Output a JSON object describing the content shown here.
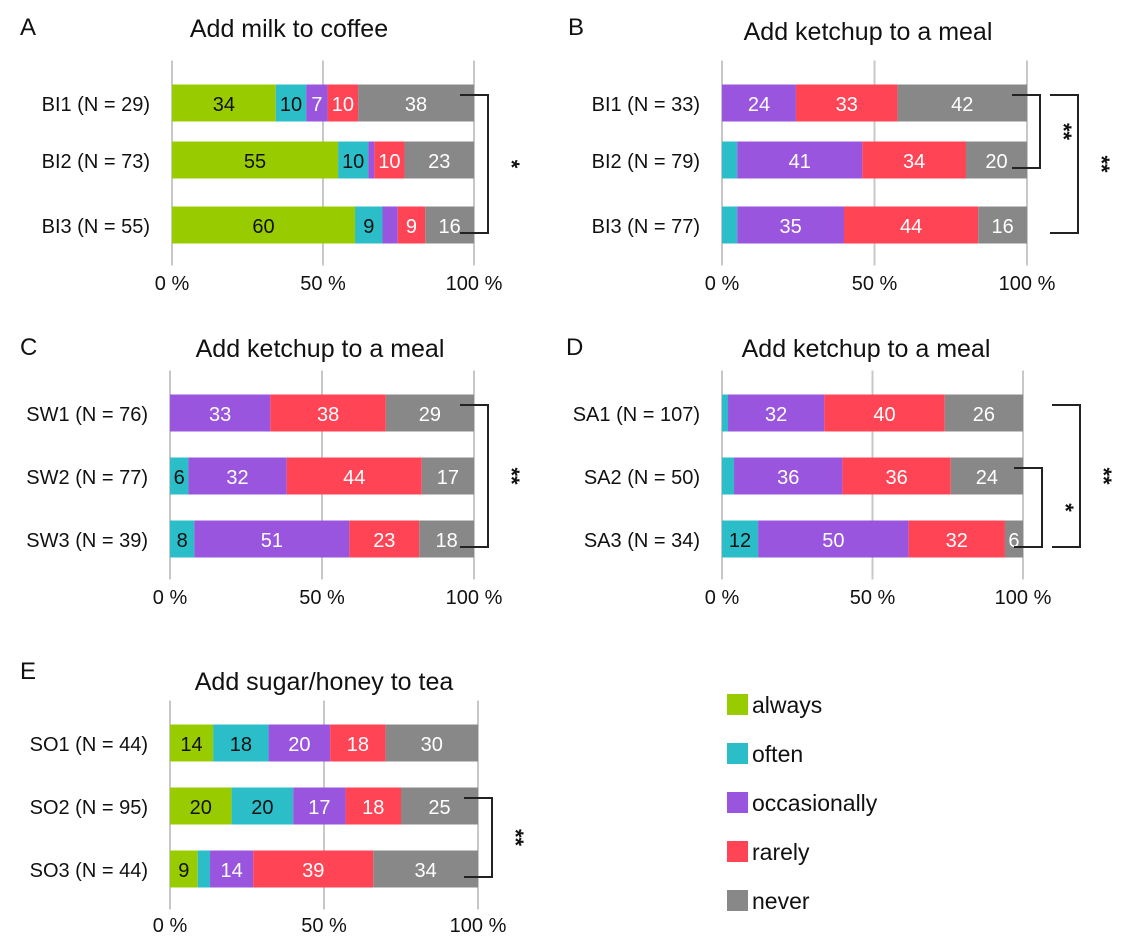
{
  "chart_data": [
    {
      "type": "bar",
      "stacked": true,
      "orientation": "horizontal",
      "panel_letter": "A",
      "title": "Add milk to coffee",
      "categories": [
        "BI1 (N = 29)",
        "BI2 (N = 73)",
        "BI3 (N = 55)"
      ],
      "series": [
        {
          "name": "always",
          "values": [
            34,
            55,
            60
          ],
          "labels": [
            "34",
            "55",
            "60"
          ]
        },
        {
          "name": "often",
          "values": [
            10,
            10,
            9
          ],
          "labels": [
            "10",
            "10",
            "9"
          ]
        },
        {
          "name": "occasionally",
          "values": [
            7,
            2,
            5
          ],
          "labels": [
            "7",
            "",
            ""
          ]
        },
        {
          "name": "rarely",
          "values": [
            10,
            10,
            9
          ],
          "labels": [
            "10",
            "10",
            "9"
          ]
        },
        {
          "name": "never",
          "values": [
            38,
            23,
            16
          ],
          "labels": [
            "38",
            "23",
            "16"
          ]
        }
      ],
      "xticks": [
        "0 %",
        "50 %",
        "100 %"
      ],
      "xlim": [
        0,
        100
      ],
      "grid": true,
      "significance": [
        {
          "from": 0,
          "to": 2,
          "label": "*"
        }
      ]
    },
    {
      "type": "bar",
      "stacked": true,
      "orientation": "horizontal",
      "panel_letter": "B",
      "title": "Add ketchup to a meal",
      "categories": [
        "BI1 (N = 33)",
        "BI2 (N = 79)",
        "BI3 (N = 77)"
      ],
      "series": [
        {
          "name": "always",
          "values": [
            0,
            0,
            0
          ],
          "labels": [
            "",
            "",
            ""
          ]
        },
        {
          "name": "often",
          "values": [
            0,
            5,
            5
          ],
          "labels": [
            "",
            "",
            ""
          ]
        },
        {
          "name": "occasionally",
          "values": [
            24,
            41,
            35
          ],
          "labels": [
            "24",
            "41",
            "35"
          ]
        },
        {
          "name": "rarely",
          "values": [
            33,
            34,
            44
          ],
          "labels": [
            "33",
            "34",
            "44"
          ]
        },
        {
          "name": "never",
          "values": [
            42,
            20,
            16
          ],
          "labels": [
            "42",
            "20",
            "16"
          ]
        }
      ],
      "xticks": [
        "0 %",
        "50 %",
        "100 %"
      ],
      "xlim": [
        0,
        100
      ],
      "grid": true,
      "significance": [
        {
          "from": 0,
          "to": 1,
          "label": "**"
        },
        {
          "from": 0,
          "to": 2,
          "label": "**"
        }
      ]
    },
    {
      "type": "bar",
      "stacked": true,
      "orientation": "horizontal",
      "panel_letter": "C",
      "title": "Add ketchup to a meal",
      "categories": [
        "SW1 (N = 76)",
        "SW2 (N = 77)",
        "SW3 (N = 39)"
      ],
      "series": [
        {
          "name": "always",
          "values": [
            0,
            0,
            0
          ],
          "labels": [
            "",
            "",
            ""
          ]
        },
        {
          "name": "often",
          "values": [
            0,
            6,
            8
          ],
          "labels": [
            "",
            "6",
            "8"
          ]
        },
        {
          "name": "occasionally",
          "values": [
            33,
            32,
            51
          ],
          "labels": [
            "33",
            "32",
            "51"
          ]
        },
        {
          "name": "rarely",
          "values": [
            38,
            44,
            23
          ],
          "labels": [
            "38",
            "44",
            "23"
          ]
        },
        {
          "name": "never",
          "values": [
            29,
            17,
            18
          ],
          "labels": [
            "29",
            "17",
            "18"
          ]
        }
      ],
      "xticks": [
        "0 %",
        "50 %",
        "100 %"
      ],
      "xlim": [
        0,
        100
      ],
      "grid": true,
      "significance": [
        {
          "from": 0,
          "to": 2,
          "label": "**"
        }
      ]
    },
    {
      "type": "bar",
      "stacked": true,
      "orientation": "horizontal",
      "panel_letter": "D",
      "title": "Add ketchup to a meal",
      "categories": [
        "SA1 (N = 107)",
        "SA2 (N = 50)",
        "SA3 (N = 34)"
      ],
      "series": [
        {
          "name": "always",
          "values": [
            0,
            0,
            0
          ],
          "labels": [
            "",
            "",
            ""
          ]
        },
        {
          "name": "often",
          "values": [
            2,
            4,
            12
          ],
          "labels": [
            "",
            "",
            "12"
          ]
        },
        {
          "name": "occasionally",
          "values": [
            32,
            36,
            50
          ],
          "labels": [
            "32",
            "36",
            "50"
          ]
        },
        {
          "name": "rarely",
          "values": [
            40,
            36,
            32
          ],
          "labels": [
            "40",
            "36",
            "32"
          ]
        },
        {
          "name": "never",
          "values": [
            26,
            24,
            6
          ],
          "labels": [
            "26",
            "24",
            "6"
          ]
        }
      ],
      "xticks": [
        "0 %",
        "50 %",
        "100 %"
      ],
      "xlim": [
        0,
        100
      ],
      "grid": true,
      "significance": [
        {
          "from": 1,
          "to": 2,
          "label": "*"
        },
        {
          "from": 0,
          "to": 2,
          "label": "**"
        }
      ]
    },
    {
      "type": "bar",
      "stacked": true,
      "orientation": "horizontal",
      "panel_letter": "E",
      "title": "Add sugar/honey to tea",
      "categories": [
        "SO1 (N = 44)",
        "SO2 (N = 95)",
        "SO3 (N = 44)"
      ],
      "series": [
        {
          "name": "always",
          "values": [
            14,
            20,
            9
          ],
          "labels": [
            "14",
            "20",
            "9"
          ]
        },
        {
          "name": "often",
          "values": [
            18,
            20,
            4
          ],
          "labels": [
            "18",
            "20",
            ""
          ]
        },
        {
          "name": "occasionally",
          "values": [
            20,
            17,
            14
          ],
          "labels": [
            "20",
            "17",
            "14"
          ]
        },
        {
          "name": "rarely",
          "values": [
            18,
            18,
            39
          ],
          "labels": [
            "18",
            "18",
            "39"
          ]
        },
        {
          "name": "never",
          "values": [
            30,
            25,
            34
          ],
          "labels": [
            "30",
            "25",
            "34"
          ]
        }
      ],
      "xticks": [
        "0 %",
        "50 %",
        "100 %"
      ],
      "xlim": [
        0,
        100
      ],
      "grid": true,
      "significance": [
        {
          "from": 1,
          "to": 2,
          "label": "**"
        }
      ]
    }
  ],
  "legend": {
    "placement": "bottom-right",
    "items": [
      {
        "name": "always",
        "color": "#99cc00"
      },
      {
        "name": "often",
        "color": "#2bbec8"
      },
      {
        "name": "occasionally",
        "color": "#9955dd"
      },
      {
        "name": "rarely",
        "color": "#ff4455"
      },
      {
        "name": "never",
        "color": "#888888"
      }
    ]
  },
  "colors": {
    "always": "#99cc00",
    "often": "#2bbec8",
    "occasionally": "#9955dd",
    "rarely": "#ff4455",
    "never": "#888888",
    "text": "#111111",
    "grid": "#c8c8c8"
  }
}
